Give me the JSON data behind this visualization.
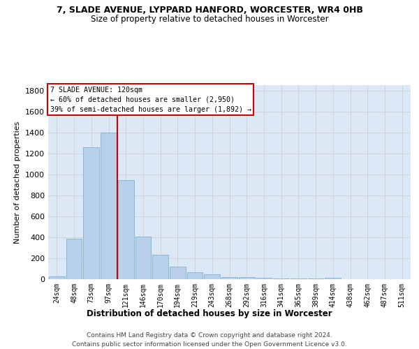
{
  "title1": "7, SLADE AVENUE, LYPPARD HANFORD, WORCESTER, WR4 0HB",
  "title2": "Size of property relative to detached houses in Worcester",
  "xlabel": "Distribution of detached houses by size in Worcester",
  "ylabel": "Number of detached properties",
  "categories": [
    "24sqm",
    "48sqm",
    "73sqm",
    "97sqm",
    "121sqm",
    "146sqm",
    "170sqm",
    "194sqm",
    "219sqm",
    "243sqm",
    "268sqm",
    "292sqm",
    "316sqm",
    "341sqm",
    "365sqm",
    "389sqm",
    "414sqm",
    "438sqm",
    "462sqm",
    "487sqm",
    "511sqm"
  ],
  "values": [
    25,
    390,
    1260,
    1400,
    950,
    410,
    235,
    120,
    65,
    45,
    20,
    20,
    15,
    5,
    5,
    5,
    15,
    0,
    0,
    0,
    0
  ],
  "bar_color": "#b8d0ea",
  "bar_edge_color": "#6aaad4",
  "red_line_index": 4,
  "annotation_line1": "7 SLADE AVENUE: 120sqm",
  "annotation_line2": "← 60% of detached houses are smaller (2,950)",
  "annotation_line3": "39% of semi-detached houses are larger (1,892) →",
  "annotation_box_color": "#cc0000",
  "ylim": [
    0,
    1850
  ],
  "yticks": [
    0,
    200,
    400,
    600,
    800,
    1000,
    1200,
    1400,
    1600,
    1800
  ],
  "grid_color": "#cccccc",
  "bg_color": "#dce8f5",
  "footer1": "Contains HM Land Registry data © Crown copyright and database right 2024.",
  "footer2": "Contains public sector information licensed under the Open Government Licence v3.0."
}
